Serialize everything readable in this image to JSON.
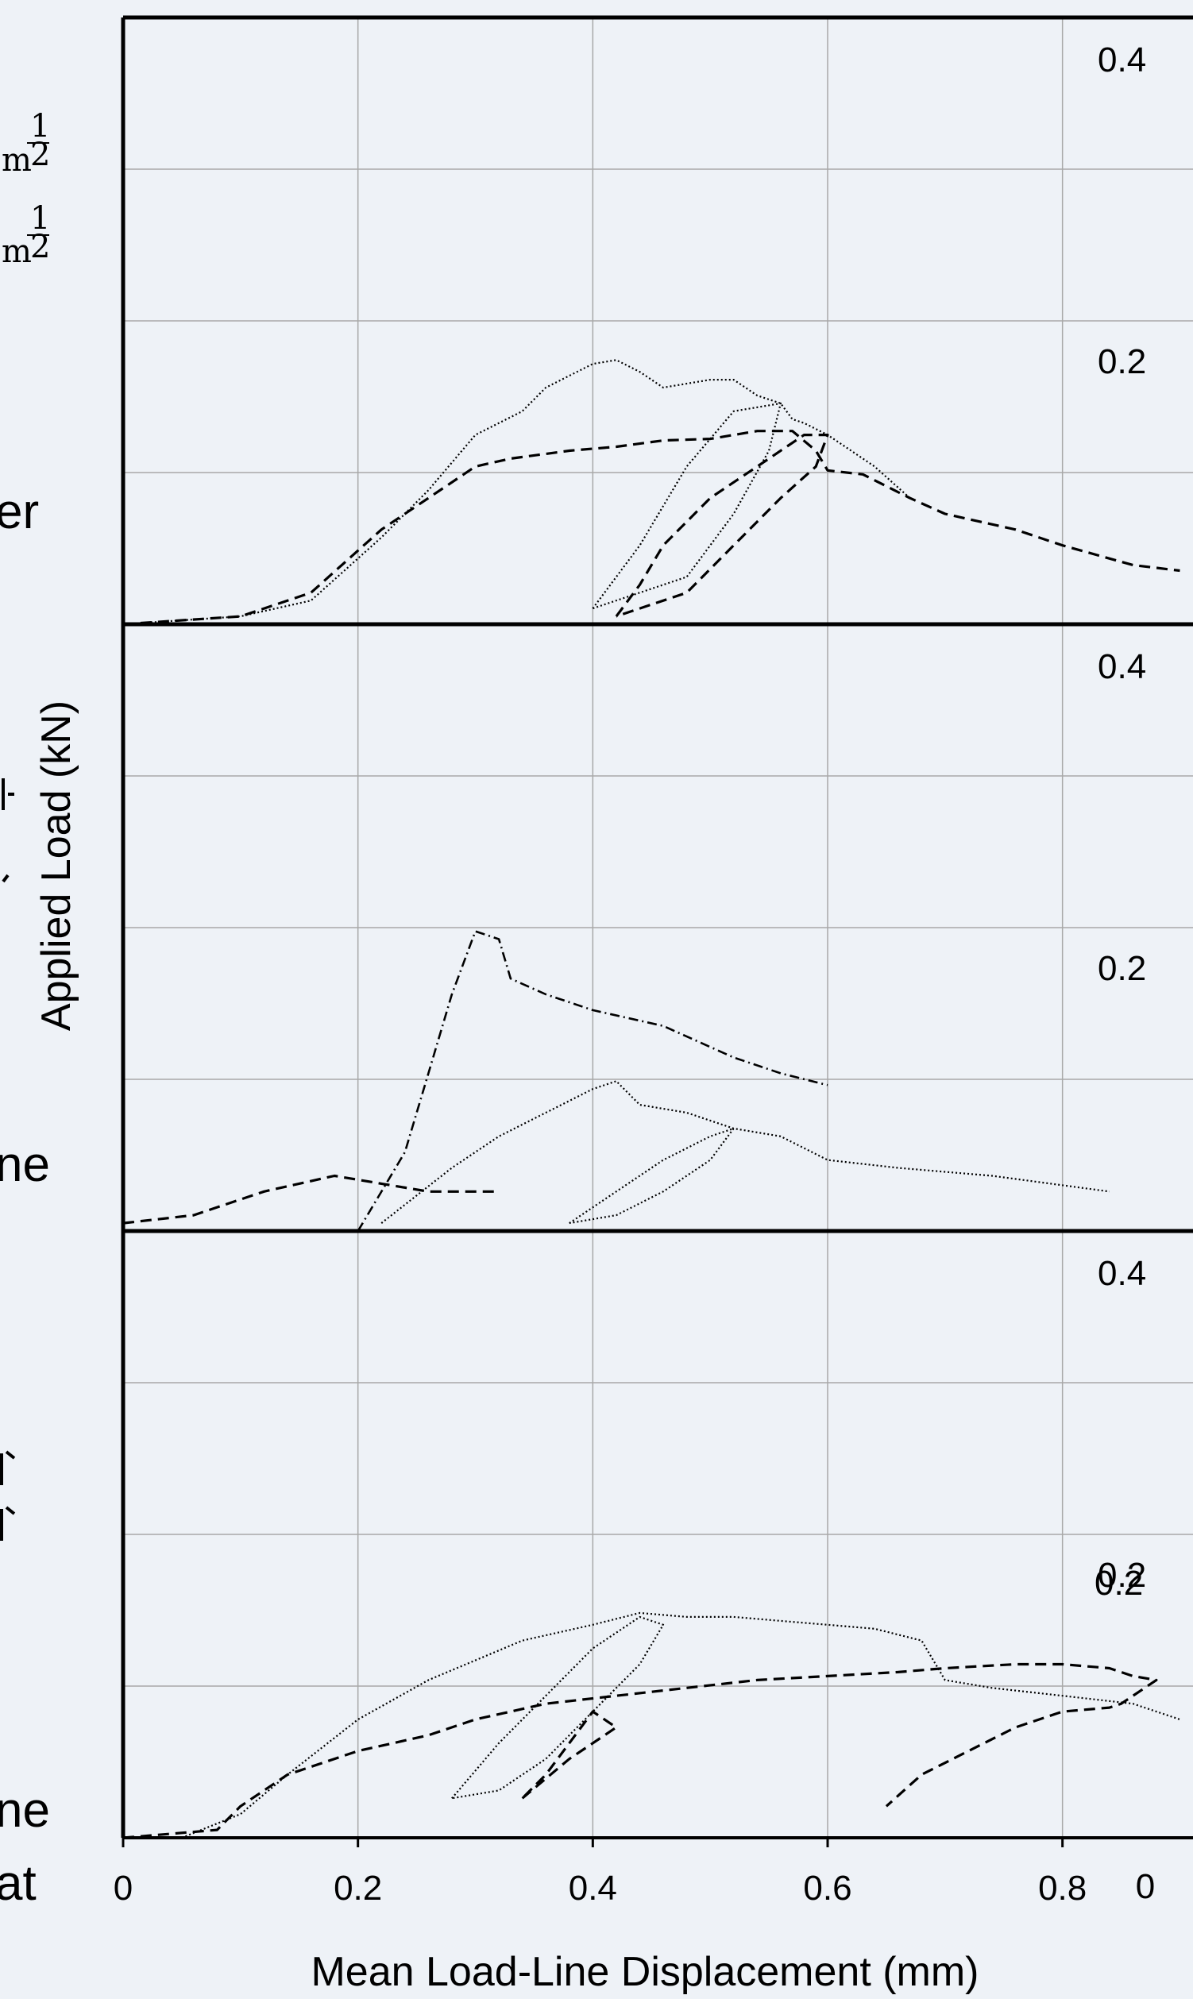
{
  "chart_data": {
    "type": "line",
    "xlabel": "Mean Load-Line Displacement (mm)",
    "ylabel": "Applied Load (kN)",
    "xlim": [
      0,
      0.9
    ],
    "x_ticks": [
      "0",
      "0.2",
      "0.4",
      "0.6",
      "0.8"
    ],
    "x_tick_values": [
      0,
      0.2,
      0.4,
      0.6,
      0.8
    ],
    "clipped_right_tick": "0",
    "ylim": [
      0,
      0.4
    ],
    "grid": true,
    "panels": [
      {
        "y_ticks": [
          "0.4",
          "0.2"
        ],
        "series": [
          {
            "style": "dashed",
            "points": [
              [
                0.0,
                0.0
              ],
              [
                0.1,
                0.01
              ],
              [
                0.16,
                0.04
              ],
              [
                0.22,
                0.12
              ],
              [
                0.26,
                0.16
              ],
              [
                0.3,
                0.2
              ],
              [
                0.33,
                0.21
              ],
              [
                0.38,
                0.22
              ],
              [
                0.42,
                0.225
              ],
              [
                0.46,
                0.233
              ],
              [
                0.5,
                0.235
              ],
              [
                0.54,
                0.245
              ],
              [
                0.57,
                0.245
              ],
              [
                0.59,
                0.22
              ],
              [
                0.6,
                0.195
              ],
              [
                0.63,
                0.19
              ],
              [
                0.67,
                0.16
              ],
              [
                0.7,
                0.14
              ],
              [
                0.76,
                0.12
              ],
              [
                0.8,
                0.1
              ],
              [
                0.86,
                0.075
              ],
              [
                0.9,
                0.068
              ]
            ]
          },
          {
            "style": "dotted",
            "points": [
              [
                0.0,
                0.0
              ],
              [
                0.1,
                0.01
              ],
              [
                0.16,
                0.03
              ],
              [
                0.22,
                0.11
              ],
              [
                0.26,
                0.17
              ],
              [
                0.3,
                0.24
              ],
              [
                0.34,
                0.27
              ],
              [
                0.36,
                0.3
              ],
              [
                0.4,
                0.33
              ],
              [
                0.42,
                0.335
              ],
              [
                0.44,
                0.32
              ],
              [
                0.46,
                0.3
              ],
              [
                0.5,
                0.31
              ],
              [
                0.52,
                0.31
              ],
              [
                0.54,
                0.29
              ],
              [
                0.56,
                0.28
              ],
              [
                0.57,
                0.26
              ],
              [
                0.58,
                0.255
              ],
              [
                0.6,
                0.24
              ],
              [
                0.62,
                0.22
              ],
              [
                0.64,
                0.2
              ],
              [
                0.67,
                0.16
              ]
            ]
          },
          {
            "style": "dashed",
            "points": [
              [
                0.42,
                0.01
              ],
              [
                0.44,
                0.05
              ],
              [
                0.46,
                0.1
              ],
              [
                0.5,
                0.16
              ],
              [
                0.54,
                0.2
              ],
              [
                0.58,
                0.24
              ],
              [
                0.6,
                0.24
              ],
              [
                0.59,
                0.2
              ],
              [
                0.56,
                0.16
              ],
              [
                0.52,
                0.1
              ],
              [
                0.48,
                0.04
              ],
              [
                0.44,
                0.02
              ],
              [
                0.42,
                0.01
              ]
            ]
          },
          {
            "style": "dotted",
            "points": [
              [
                0.4,
                0.02
              ],
              [
                0.44,
                0.1
              ],
              [
                0.48,
                0.2
              ],
              [
                0.52,
                0.27
              ],
              [
                0.56,
                0.28
              ],
              [
                0.55,
                0.22
              ],
              [
                0.52,
                0.14
              ],
              [
                0.48,
                0.06
              ],
              [
                0.4,
                0.02
              ]
            ]
          }
        ]
      },
      {
        "y_ticks": [
          "0.4",
          "0.2"
        ],
        "series": [
          {
            "style": "dash-dot",
            "points": [
              [
                0.2,
                0.0
              ],
              [
                0.24,
                0.1
              ],
              [
                0.26,
                0.2
              ],
              [
                0.28,
                0.3
              ],
              [
                0.3,
                0.38
              ],
              [
                0.32,
                0.37
              ],
              [
                0.33,
                0.32
              ],
              [
                0.36,
                0.3
              ],
              [
                0.4,
                0.28
              ],
              [
                0.46,
                0.26
              ],
              [
                0.52,
                0.22
              ],
              [
                0.56,
                0.2
              ],
              [
                0.6,
                0.185
              ]
            ]
          },
          {
            "style": "dashed",
            "points": [
              [
                0.0,
                0.01
              ],
              [
                0.06,
                0.02
              ],
              [
                0.12,
                0.05
              ],
              [
                0.18,
                0.07
              ],
              [
                0.22,
                0.06
              ],
              [
                0.26,
                0.05
              ],
              [
                0.3,
                0.05
              ],
              [
                0.32,
                0.05
              ]
            ]
          },
          {
            "style": "dotted",
            "points": [
              [
                0.22,
                0.01
              ],
              [
                0.28,
                0.08
              ],
              [
                0.32,
                0.12
              ],
              [
                0.36,
                0.15
              ],
              [
                0.4,
                0.18
              ],
              [
                0.42,
                0.19
              ],
              [
                0.44,
                0.16
              ],
              [
                0.48,
                0.15
              ],
              [
                0.52,
                0.13
              ],
              [
                0.56,
                0.12
              ],
              [
                0.6,
                0.09
              ],
              [
                0.66,
                0.08
              ],
              [
                0.74,
                0.07
              ],
              [
                0.84,
                0.05
              ]
            ]
          },
          {
            "style": "dotted",
            "points": [
              [
                0.38,
                0.01
              ],
              [
                0.42,
                0.05
              ],
              [
                0.46,
                0.09
              ],
              [
                0.5,
                0.12
              ],
              [
                0.52,
                0.13
              ],
              [
                0.5,
                0.09
              ],
              [
                0.46,
                0.05
              ],
              [
                0.42,
                0.02
              ],
              [
                0.38,
                0.01
              ]
            ]
          }
        ]
      },
      {
        "y_ticks": [
          "0.4",
          "0.2",
          "0.2"
        ],
        "series": [
          {
            "style": "dashed",
            "points": [
              [
                0.0,
                0.0
              ],
              [
                0.08,
                0.01
              ],
              [
                0.1,
                0.04
              ],
              [
                0.14,
                0.08
              ],
              [
                0.2,
                0.11
              ],
              [
                0.26,
                0.13
              ],
              [
                0.3,
                0.15
              ],
              [
                0.36,
                0.17
              ],
              [
                0.42,
                0.18
              ],
              [
                0.48,
                0.19
              ],
              [
                0.54,
                0.2
              ],
              [
                0.6,
                0.205
              ],
              [
                0.66,
                0.21
              ],
              [
                0.7,
                0.215
              ],
              [
                0.76,
                0.22
              ],
              [
                0.8,
                0.22
              ],
              [
                0.84,
                0.215
              ],
              [
                0.86,
                0.205
              ],
              [
                0.88,
                0.2
              ],
              [
                0.87,
                0.19
              ],
              [
                0.85,
                0.17
              ],
              [
                0.84,
                0.165
              ],
              [
                0.8,
                0.16
              ],
              [
                0.76,
                0.14
              ],
              [
                0.72,
                0.11
              ],
              [
                0.68,
                0.08
              ],
              [
                0.65,
                0.04
              ]
            ]
          },
          {
            "style": "dotted",
            "points": [
              [
                0.05,
                0.0
              ],
              [
                0.1,
                0.03
              ],
              [
                0.14,
                0.08
              ],
              [
                0.2,
                0.15
              ],
              [
                0.26,
                0.2
              ],
              [
                0.34,
                0.25
              ],
              [
                0.4,
                0.27
              ],
              [
                0.44,
                0.285
              ],
              [
                0.48,
                0.28
              ],
              [
                0.52,
                0.28
              ],
              [
                0.56,
                0.275
              ],
              [
                0.6,
                0.27
              ],
              [
                0.64,
                0.265
              ],
              [
                0.68,
                0.25
              ],
              [
                0.7,
                0.2
              ],
              [
                0.74,
                0.19
              ],
              [
                0.8,
                0.18
              ],
              [
                0.86,
                0.17
              ],
              [
                0.9,
                0.15
              ]
            ]
          },
          {
            "style": "dotted",
            "points": [
              [
                0.28,
                0.05
              ],
              [
                0.32,
                0.12
              ],
              [
                0.36,
                0.18
              ],
              [
                0.4,
                0.24
              ],
              [
                0.44,
                0.28
              ],
              [
                0.46,
                0.27
              ],
              [
                0.44,
                0.22
              ],
              [
                0.4,
                0.16
              ],
              [
                0.36,
                0.1
              ],
              [
                0.32,
                0.06
              ],
              [
                0.28,
                0.05
              ]
            ]
          },
          {
            "style": "dashed",
            "points": [
              [
                0.34,
                0.05
              ],
              [
                0.38,
                0.1
              ],
              [
                0.42,
                0.14
              ],
              [
                0.4,
                0.16
              ],
              [
                0.38,
                0.12
              ],
              [
                0.36,
                0.08
              ],
              [
                0.34,
                0.05
              ]
            ]
          }
        ]
      }
    ]
  },
  "edge_text": {
    "frag_1": "er",
    "frag_2": "ne",
    "frag_3": "ne",
    "frag_4": "at",
    "math_1": "m",
    "math_1_num": "1",
    "math_1_den": "2",
    "math_2": "m",
    "math_2_num": "1",
    "math_2_den": "2"
  }
}
